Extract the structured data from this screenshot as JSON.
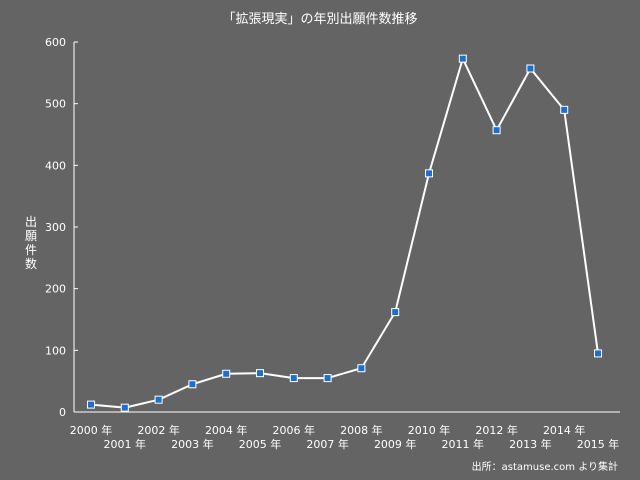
{
  "chart_data": {
    "type": "line",
    "title": "「拡張現実」の年別出願件数推移",
    "ylabel": "出願件数",
    "xlabel": "",
    "ylim": [
      0,
      600
    ],
    "yticks": [
      0,
      100,
      200,
      300,
      400,
      500,
      600
    ],
    "grid": false,
    "x": [
      "2000 年",
      "2001 年",
      "2002 年",
      "2003 年",
      "2004 年",
      "2005 年",
      "2006 年",
      "2007 年",
      "2008 年",
      "2009 年",
      "2010 年",
      "2011 年",
      "2012 年",
      "2013 年",
      "2014 年",
      "2015 年"
    ],
    "series": [
      {
        "values": [
          12,
          7,
          20,
          45,
          62,
          63,
          55,
          55,
          71,
          162,
          387,
          573,
          457,
          557,
          490,
          95
        ]
      }
    ],
    "source": "出所：astamuse.com より集計",
    "colors": {
      "line": "#ffffff",
      "marker": "#1a6fd0",
      "background": "#646464"
    }
  }
}
